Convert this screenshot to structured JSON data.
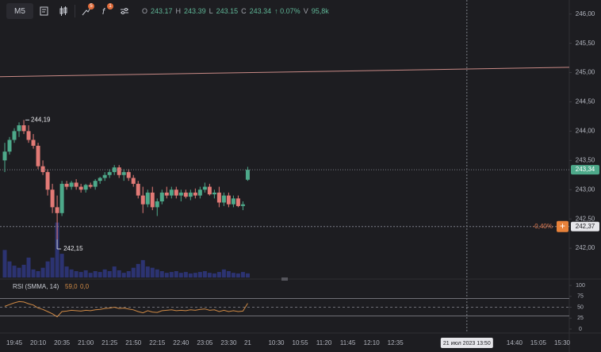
{
  "toolbar": {
    "interval": "M5",
    "badges": [
      "5",
      "1"
    ],
    "ohlc": [
      {
        "key": "O",
        "value": "243.17"
      },
      {
        "key": "H",
        "value": "243.39"
      },
      {
        "key": "L",
        "value": "243.15"
      },
      {
        "key": "C",
        "value": "243.34"
      }
    ],
    "change": "↑ 0.07%",
    "volume": {
      "key": "V",
      "value": "95,8k"
    }
  },
  "chart_data": [
    {
      "type": "candlestick",
      "open": [
        243.5,
        243.65,
        243.85,
        244.0,
        244.1,
        244.0,
        243.85,
        243.75,
        243.4,
        243.3,
        243.0,
        242.7,
        242.6,
        243.1,
        243.05,
        243.12,
        243.05,
        243.0,
        243.08,
        243.05,
        243.15,
        243.2,
        243.25,
        243.3,
        243.38,
        243.25,
        243.3,
        243.2,
        243.1,
        242.9,
        242.75,
        242.95,
        242.7,
        242.8,
        242.95,
        242.9,
        243.0,
        242.9,
        242.95,
        242.88,
        242.95,
        242.9,
        243.0,
        243.05,
        242.92,
        242.95,
        242.78,
        242.9,
        242.75,
        242.85,
        242.72,
        243.17
      ],
      "high": [
        243.8,
        243.9,
        244.05,
        244.15,
        244.19,
        244.1,
        243.95,
        243.8,
        243.5,
        243.35,
        243.1,
        242.9,
        243.15,
        243.15,
        243.15,
        243.18,
        243.1,
        243.1,
        243.12,
        243.18,
        243.22,
        243.3,
        243.35,
        243.42,
        243.42,
        243.35,
        243.35,
        243.25,
        243.15,
        243.05,
        243.0,
        243.05,
        242.85,
        243.0,
        243.05,
        243.05,
        243.05,
        243.0,
        243.0,
        243.0,
        243.02,
        243.05,
        243.12,
        243.1,
        243.0,
        243.05,
        242.95,
        242.95,
        242.9,
        242.9,
        242.8,
        243.39
      ],
      "low": [
        243.3,
        243.6,
        243.8,
        243.9,
        243.95,
        243.8,
        243.7,
        243.35,
        243.25,
        242.9,
        242.6,
        242.15,
        242.55,
        243.0,
        243.0,
        243.0,
        242.95,
        242.95,
        243.02,
        243.0,
        243.1,
        243.15,
        243.2,
        243.25,
        243.2,
        243.15,
        243.15,
        243.05,
        242.85,
        242.6,
        242.7,
        242.65,
        242.55,
        242.75,
        242.85,
        242.85,
        242.85,
        242.8,
        242.85,
        242.82,
        242.85,
        242.85,
        242.95,
        242.9,
        242.85,
        242.7,
        242.72,
        242.7,
        242.7,
        242.7,
        242.65,
        243.15
      ],
      "close": [
        243.65,
        243.85,
        244.0,
        244.1,
        244.0,
        243.85,
        243.75,
        243.4,
        243.3,
        243.0,
        242.7,
        242.6,
        243.1,
        243.05,
        243.12,
        243.05,
        243.0,
        243.08,
        243.05,
        243.15,
        243.2,
        243.25,
        243.3,
        243.38,
        243.25,
        243.3,
        243.2,
        243.1,
        242.9,
        242.75,
        242.95,
        242.7,
        242.8,
        242.95,
        242.9,
        243.0,
        242.9,
        242.95,
        242.88,
        242.95,
        242.9,
        243.0,
        243.05,
        242.92,
        242.95,
        242.78,
        242.9,
        242.75,
        242.85,
        242.72,
        242.75,
        243.34
      ],
      "volume": [
        650000,
        380000,
        280000,
        230000,
        300000,
        470000,
        190000,
        150000,
        230000,
        380000,
        470000,
        1300000,
        560000,
        260000,
        190000,
        150000,
        130000,
        170000,
        110000,
        150000,
        130000,
        190000,
        150000,
        260000,
        170000,
        110000,
        150000,
        230000,
        320000,
        410000,
        260000,
        230000,
        190000,
        150000,
        110000,
        130000,
        150000,
        110000,
        130000,
        95000,
        110000,
        130000,
        150000,
        110000,
        95000,
        130000,
        190000,
        150000,
        110000,
        95000,
        130000,
        95800
      ],
      "volume_lim": [
        0,
        1500000
      ],
      "up_color": "#4da98a",
      "down_color": "#e27a76",
      "volume_color": "#2c3371",
      "xlim": [
        -1,
        118.5
      ],
      "xticks": [
        {
          "value": 2,
          "label": "19:45"
        },
        {
          "value": 7,
          "label": "20:10"
        },
        {
          "value": 12,
          "label": "20:35"
        },
        {
          "value": 17,
          "label": "21:00"
        },
        {
          "value": 22,
          "label": "21:25"
        },
        {
          "value": 27,
          "label": "21:50"
        },
        {
          "value": 32,
          "label": "22:15"
        },
        {
          "value": 37,
          "label": "22:40"
        },
        {
          "value": 42,
          "label": "23:05"
        },
        {
          "value": 47,
          "label": "23:30"
        },
        {
          "value": 51,
          "label": "21"
        },
        {
          "value": 57,
          "label": "10:30"
        },
        {
          "value": 62,
          "label": "10:55"
        },
        {
          "value": 67,
          "label": "11:20"
        },
        {
          "value": 72,
          "label": "11:45"
        },
        {
          "value": 77,
          "label": "12:10"
        },
        {
          "value": 82,
          "label": "12:35"
        },
        {
          "value": 107,
          "label": "14:40"
        },
        {
          "value": 112,
          "label": "15:05"
        },
        {
          "value": 117,
          "label": "15:30"
        }
      ],
      "ylim": [
        241.5,
        246.24
      ],
      "yticks": [
        {
          "value": 246,
          "label": "246,00"
        },
        {
          "value": 245.5,
          "label": "245,50"
        },
        {
          "value": 245,
          "label": "245,00"
        },
        {
          "value": 244.5,
          "label": "244,50"
        },
        {
          "value": 244,
          "label": "244,00"
        },
        {
          "value": 243.5,
          "label": "243,50"
        },
        {
          "value": 243,
          "label": "243,00"
        },
        {
          "value": 242.5,
          "label": "242,50"
        },
        {
          "value": 242,
          "label": "242,00"
        }
      ],
      "max_label": "244,19",
      "min_label": "242,15",
      "trendline": [
        244.93,
        245.09
      ],
      "trendline_color": "#c98a86",
      "last_price": {
        "value": 243.34,
        "label": "243,34"
      },
      "crosshair": {
        "x": 97,
        "price": {
          "value": 242.37,
          "label": "242,37"
        },
        "change": "-0,40%",
        "button": "+",
        "time": "21 июл 2023 13:50"
      }
    },
    {
      "type": "line",
      "title": "RSI (SMMA, 14)",
      "values": [
        52,
        56,
        60,
        63,
        62,
        58,
        55,
        48,
        45,
        40,
        35,
        28,
        40,
        41,
        43,
        42,
        41,
        43,
        42,
        44,
        45,
        47,
        48,
        50,
        47,
        48,
        46,
        44,
        40,
        37,
        42,
        39,
        38,
        42,
        43,
        44,
        42,
        43,
        42,
        44,
        43,
        45,
        46,
        43,
        44,
        40,
        43,
        40,
        42,
        40,
        41,
        59
      ],
      "value_label": "59,0",
      "signal_label": "0,0",
      "color": "#d08a45",
      "ylim": [
        0,
        100
      ],
      "yticks": [
        100,
        75,
        50,
        25,
        0
      ],
      "levels": [
        70,
        30
      ],
      "midline": 50
    }
  ]
}
